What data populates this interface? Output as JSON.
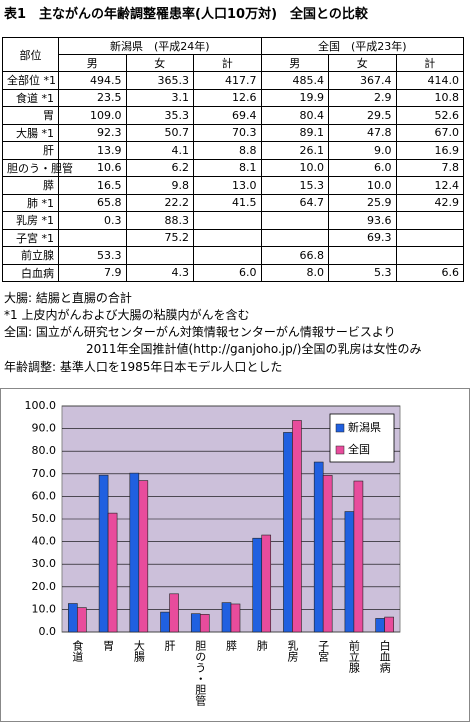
{
  "header": {
    "title": "表1　主ながんの年齢調整罹患率(人口10万対)　全国との比較"
  },
  "table": {
    "corner": "部位",
    "groups": [
      "新潟県　(平成24年)",
      "全国　(平成23年)"
    ],
    "columns": [
      "男",
      "女",
      "計",
      "男",
      "女",
      "計"
    ],
    "rows": [
      [
        "全部位 *1",
        "494.5",
        "365.3",
        "417.7",
        "485.4",
        "367.4",
        "414.0"
      ],
      [
        "食道 *1",
        "23.5",
        "3.1",
        "12.6",
        "19.9",
        "2.9",
        "10.8"
      ],
      [
        "胃",
        "109.0",
        "35.3",
        "69.4",
        "80.4",
        "29.5",
        "52.6"
      ],
      [
        "大腸 *1",
        "92.3",
        "50.7",
        "70.3",
        "89.1",
        "47.8",
        "67.0"
      ],
      [
        "肝",
        "13.9",
        "4.1",
        "8.8",
        "26.1",
        "9.0",
        "16.9"
      ],
      [
        "胆のう・胆管",
        "10.6",
        "6.2",
        "8.1",
        "10.0",
        "6.0",
        "7.8"
      ],
      [
        "膵",
        "16.5",
        "9.8",
        "13.0",
        "15.3",
        "10.0",
        "12.4"
      ],
      [
        "肺 *1",
        "65.8",
        "22.2",
        "41.5",
        "64.7",
        "25.9",
        "42.9"
      ],
      [
        "乳房 *1",
        "0.3",
        "88.3",
        null,
        null,
        "93.6",
        null
      ],
      [
        "子宮 *1",
        null,
        "75.2",
        null,
        null,
        "69.3",
        null
      ],
      [
        "前立腺",
        "53.3",
        null,
        null,
        "66.8",
        null,
        null
      ],
      [
        "白血病",
        "7.9",
        "4.3",
        "6.0",
        "8.0",
        "5.3",
        "6.6"
      ]
    ]
  },
  "notes": [
    "大腸: 結腸と直腸の合計",
    "*1  上皮内がんおよび大腸の粘膜内がんを含む",
    "全国: 国立がん研究センターがん対策情報センターがん情報サービスより",
    "2011年全国推計値(http://ganjoho.jp/)全国の乳房は女性のみ",
    "年齢調整: 基準人口を1985年日本モデル人口とした"
  ],
  "chart_data": {
    "type": "bar",
    "categories": [
      "食道",
      "胃",
      "大腸",
      "肝",
      "胆のう・胆管",
      "膵",
      "肺",
      "乳房",
      "子宮",
      "前立腺",
      "白血病"
    ],
    "series": [
      {
        "name": "新潟県",
        "color": "#2060e0",
        "values": [
          12.6,
          69.4,
          70.3,
          8.8,
          8.1,
          13.0,
          41.5,
          88.3,
          75.2,
          53.3,
          6.0
        ]
      },
      {
        "name": "全国",
        "color": "#e84c9c",
        "values": [
          10.8,
          52.6,
          67.0,
          16.9,
          7.8,
          12.4,
          42.9,
          93.6,
          69.3,
          66.8,
          6.6
        ]
      }
    ],
    "ylim": [
      0,
      100
    ],
    "yticks": [
      {
        "value": 0,
        "label": "0.0"
      },
      {
        "value": 10,
        "label": "10.0"
      },
      {
        "value": 20,
        "label": "20.0"
      },
      {
        "value": 30,
        "label": "30.0"
      },
      {
        "value": 40,
        "label": "40.0"
      },
      {
        "value": 50,
        "label": "50.0"
      },
      {
        "value": 60,
        "label": "60.0"
      },
      {
        "value": 70,
        "label": "70.0"
      },
      {
        "value": 80,
        "label": "80.0"
      },
      {
        "value": 90,
        "label": "90.0"
      },
      {
        "value": 100,
        "label": "100.0"
      }
    ],
    "grid": true,
    "legend": "top-right"
  }
}
